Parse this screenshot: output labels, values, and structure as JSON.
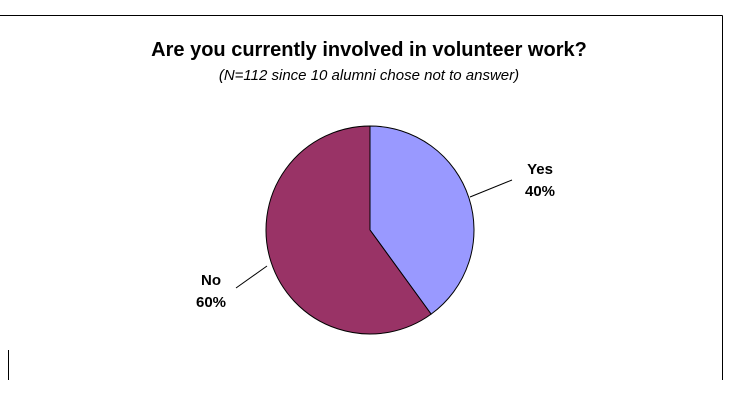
{
  "chart_data": {
    "type": "pie",
    "title": "Are you currently involved in volunteer work?",
    "subtitle": "(N=112 since 10 alumni chose not to answer)",
    "slices": [
      {
        "label": "Yes",
        "value": 40,
        "display": "40%",
        "color": "#9999ff"
      },
      {
        "label": "No",
        "value": 60,
        "display": "60%",
        "color": "#993366"
      }
    ],
    "start_angle_deg": 0,
    "direction": "clockwise",
    "legend": "none",
    "data_labels": "outside with leader lines"
  }
}
